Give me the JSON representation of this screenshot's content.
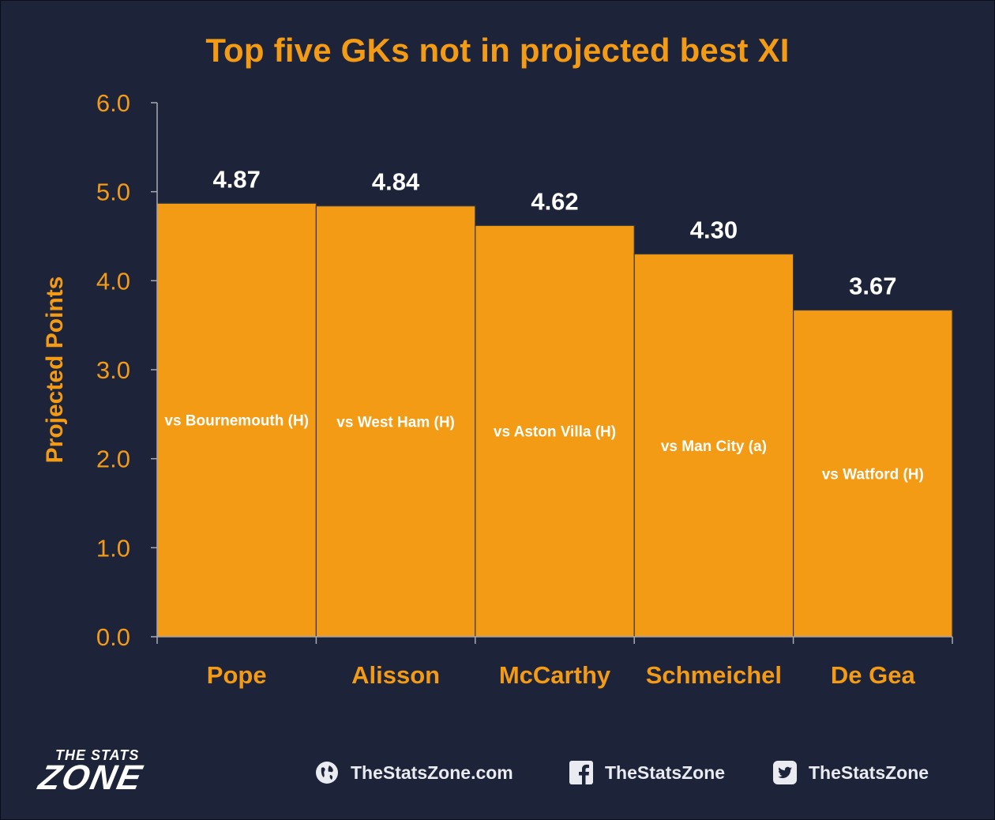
{
  "chart_data": {
    "type": "bar",
    "title": "Top five GKs not in projected best XI",
    "ylabel": "Projected Points",
    "xlabel": "",
    "ylim": [
      0,
      6
    ],
    "yticks": [
      "0.0",
      "1.0",
      "2.0",
      "3.0",
      "4.0",
      "5.0",
      "6.0"
    ],
    "categories": [
      "Pope",
      "Alisson",
      "McCarthy",
      "Schmeichel",
      "De Gea"
    ],
    "values": [
      4.87,
      4.84,
      4.62,
      4.3,
      3.67
    ],
    "value_labels": [
      "4.87",
      "4.84",
      "4.62",
      "4.30",
      "3.67"
    ],
    "bar_labels": [
      "vs Bournemouth (H)",
      "vs West Ham (H)",
      "vs Aston Villa (H)",
      "vs Man City (a)",
      "vs Watford (H)"
    ],
    "grid": false,
    "colors": {
      "bar": "#f39b14",
      "accent": "#f39b14",
      "value_text": "#ffffff",
      "background": "#1d2338"
    }
  },
  "footer": {
    "logo_top": "THE STATS",
    "logo_main": "ZONE",
    "website": "TheStatsZone.com",
    "facebook": "TheStatsZone",
    "twitter": "TheStatsZone",
    "icons": [
      "globe-icon",
      "facebook-icon",
      "twitter-icon"
    ]
  }
}
